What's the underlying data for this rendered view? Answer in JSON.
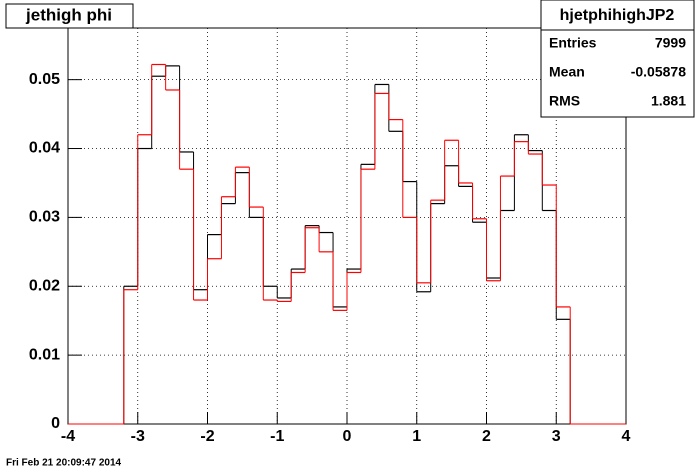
{
  "chart_data": {
    "type": "histogram",
    "title": "jethigh phi",
    "bins": [
      -3.2,
      -3.0,
      -2.8,
      -2.6,
      -2.4,
      -2.2,
      -2.0,
      -1.8,
      -1.6,
      -1.4,
      -1.2,
      -1.0,
      -0.8,
      -0.6,
      -0.4,
      -0.2,
      0,
      0.2,
      0.4,
      0.6,
      0.8,
      1.0,
      1.2,
      1.4,
      1.6,
      1.8,
      2.0,
      2.2,
      2.4,
      2.6,
      2.8,
      3.0,
      3.2
    ],
    "series": [
      {
        "color": "#000000",
        "values": [
          0.02,
          0.04,
          0.0505,
          0.052,
          0.0395,
          0.0195,
          0.0275,
          0.032,
          0.0365,
          0.03,
          0.02,
          0.0183,
          0.0225,
          0.0288,
          0.0278,
          0.017,
          0.0225,
          0.0377,
          0.0493,
          0.0425,
          0.0352,
          0.0192,
          0.032,
          0.0375,
          0.0345,
          0.0293,
          0.0212,
          0.031,
          0.042,
          0.0397,
          0.031,
          0.0152
        ]
      },
      {
        "color": "#ff0000",
        "values": [
          0.0195,
          0.042,
          0.0522,
          0.0485,
          0.037,
          0.018,
          0.024,
          0.033,
          0.0373,
          0.0315,
          0.018,
          0.0178,
          0.022,
          0.0285,
          0.025,
          0.0165,
          0.022,
          0.037,
          0.048,
          0.0442,
          0.03,
          0.0205,
          0.0325,
          0.0412,
          0.035,
          0.0298,
          0.0208,
          0.036,
          0.041,
          0.0392,
          0.0347,
          0.017
        ]
      }
    ],
    "xlim": [
      -4,
      4
    ],
    "xticks": [
      -4,
      -3,
      -2,
      -1,
      0,
      1,
      2,
      3,
      4
    ],
    "ylim": [
      0,
      0.0575
    ],
    "yticks": [
      0,
      0.01,
      0.02,
      0.03,
      0.04,
      0.05
    ],
    "grid": true,
    "stats": {
      "name": "hjetphihighJP2",
      "rows": [
        {
          "label": "Entries",
          "value": 7999
        },
        {
          "label": "Mean",
          "value": -0.05878
        },
        {
          "label": "RMS",
          "value": 1.881
        }
      ]
    },
    "timestamp": "Fri Feb 21 20:09:47 2014"
  }
}
